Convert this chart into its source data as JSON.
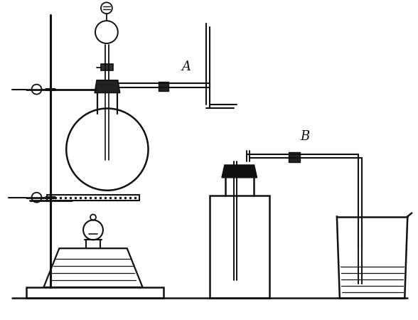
{
  "bg_color": "#ffffff",
  "line_color": "#111111",
  "label_A": "A",
  "label_B": "B",
  "figsize": [
    5.88,
    4.5
  ],
  "dpi": 100,
  "lw_main": 1.8,
  "lw_tube": 1.5,
  "lw_thick": 2.2
}
